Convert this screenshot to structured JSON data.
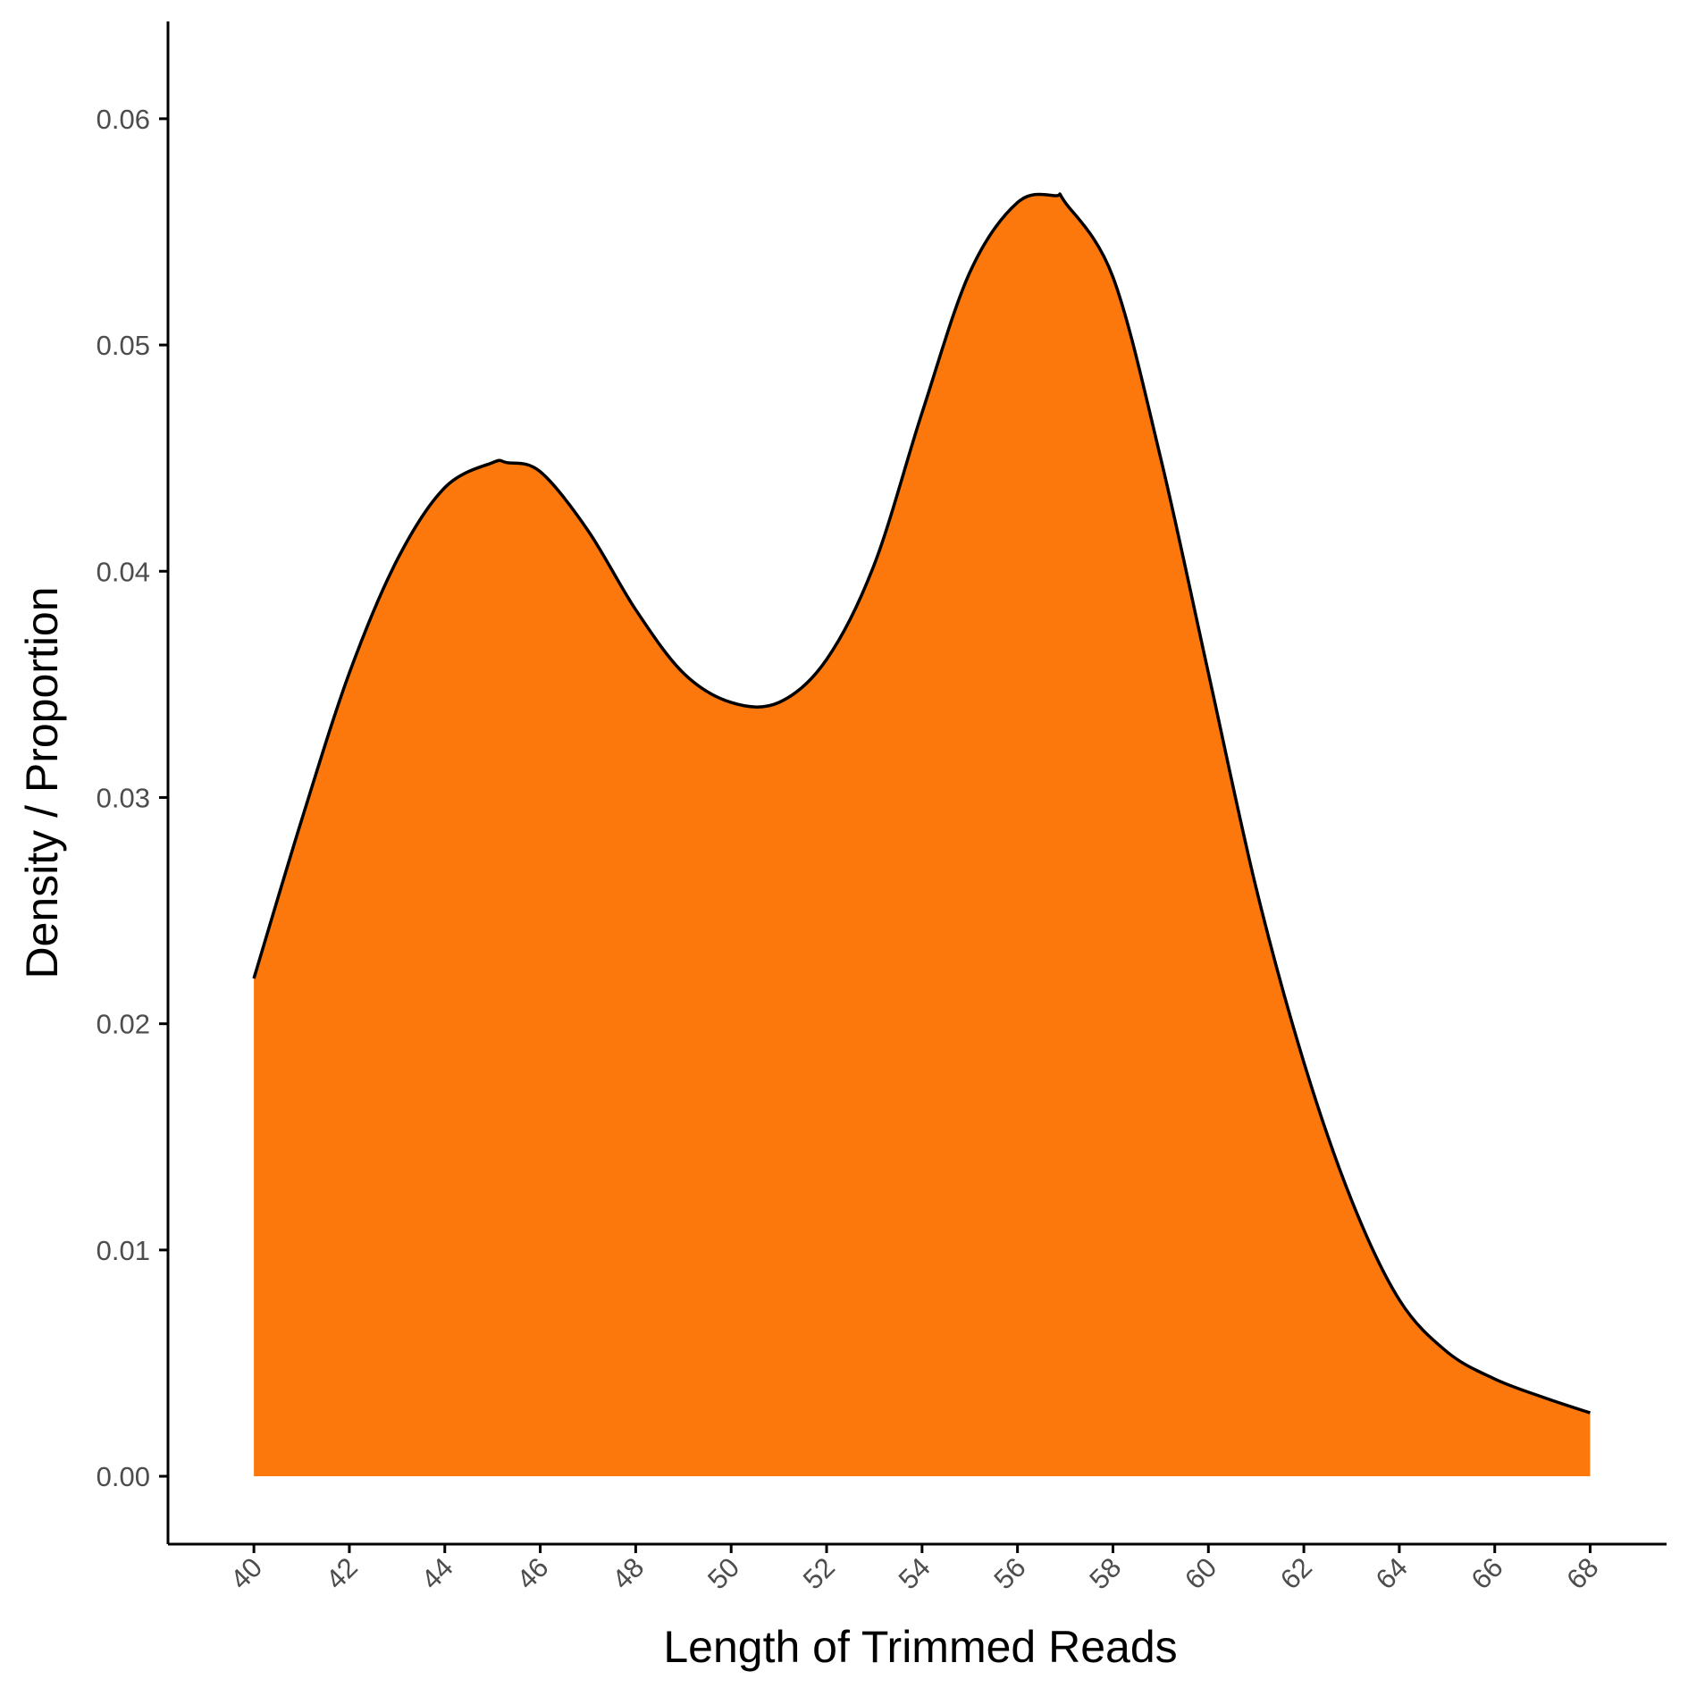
{
  "chart_data": {
    "type": "area",
    "title": "",
    "xlabel": "Length of Trimmed Reads",
    "ylabel": "Density / Proportion",
    "xlim": [
      38.2,
      69.6
    ],
    "ylim": [
      -0.003,
      0.0643
    ],
    "x_ticks": [
      "40",
      "42",
      "44",
      "46",
      "48",
      "50",
      "52",
      "54",
      "56",
      "58",
      "60",
      "62",
      "64",
      "66",
      "68"
    ],
    "y_ticks": [
      "0.00",
      "0.01",
      "0.02",
      "0.03",
      "0.04",
      "0.05",
      "0.06"
    ],
    "grid": false,
    "legend": "none",
    "fill_color": "#fc780c",
    "line_color": "#000000",
    "series": [
      {
        "x": [
          40,
          41,
          42,
          43,
          44,
          45,
          45.3,
          46,
          47,
          48,
          49,
          50,
          51,
          52,
          53,
          54,
          55,
          56,
          56.8,
          57,
          58,
          59,
          60,
          61,
          62,
          63,
          64,
          65,
          66,
          67,
          68
        ],
        "y": [
          0.022,
          0.029,
          0.0355,
          0.0405,
          0.0437,
          0.0448,
          0.0448,
          0.0444,
          0.0418,
          0.0383,
          0.0355,
          0.0342,
          0.0342,
          0.0361,
          0.0403,
          0.047,
          0.0532,
          0.0563,
          0.0566,
          0.0563,
          0.053,
          0.045,
          0.0355,
          0.026,
          0.0183,
          0.0122,
          0.0078,
          0.0055,
          0.0043,
          0.0035,
          0.0028
        ]
      }
    ]
  }
}
